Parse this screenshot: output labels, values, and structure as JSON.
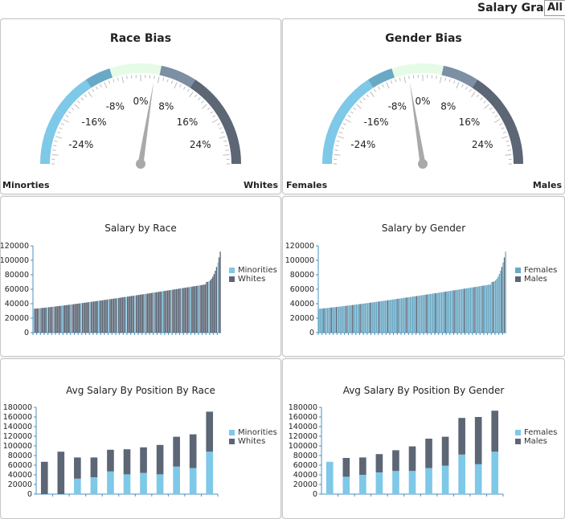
{
  "header": {
    "salary_grade_label": "Salary Grade:",
    "salary_grade_value": "All S"
  },
  "colors": {
    "light_blue": "#7ec8e8",
    "slate": "#5c6675",
    "teal": "#6aa9c5",
    "needle": "#a9a9a9",
    "mint": "#e6fbe6"
  },
  "gauges": [
    {
      "title": "Race Bias",
      "left_label": "Minorties",
      "right_label": "Whites",
      "ticks": [
        "-24%",
        "-16%",
        "-8%",
        "0%",
        "8%",
        "16%",
        "24%"
      ],
      "needle_value": 3
    },
    {
      "title": "Gender Bias",
      "left_label": "Females",
      "right_label": "Males",
      "ticks": [
        "-24%",
        "-16%",
        "-8%",
        "0%",
        "8%",
        "16%",
        "24%"
      ],
      "needle_value": -3
    }
  ],
  "chart_data": [
    {
      "type": "bar",
      "title": "Salary by Race",
      "series": [
        {
          "name": "Minorities"
        },
        {
          "name": "Whites"
        }
      ],
      "ylim": [
        0,
        120000
      ],
      "yticks": [
        "0",
        "20000",
        "40000",
        "60000",
        "80000",
        "100000",
        "120000"
      ],
      "n_bars": 150,
      "min_value": 33000,
      "max_value": 112000,
      "minority_positions": [
        0,
        5,
        11,
        16,
        23,
        30,
        38,
        45,
        52,
        60,
        67,
        74,
        81,
        89,
        96,
        103,
        110,
        118,
        125,
        132,
        140,
        147
      ]
    },
    {
      "type": "bar",
      "title": "Salary by Gender",
      "series": [
        {
          "name": "Females"
        },
        {
          "name": "Males"
        }
      ],
      "ylim": [
        0,
        120000
      ],
      "yticks": [
        "0",
        "20000",
        "40000",
        "60000",
        "80000",
        "100000",
        "120000"
      ],
      "n_bars": 150,
      "min_value": 33000,
      "max_value": 112000,
      "male_positions": [
        4,
        10,
        14,
        22,
        27,
        33,
        41,
        48,
        55,
        63,
        70,
        78,
        86,
        93,
        101,
        108,
        116,
        124,
        131,
        139,
        146,
        148
      ]
    },
    {
      "type": "bar",
      "title": "Avg Salary By Position By Race",
      "series": [
        {
          "name": "Minorities",
          "values": [
            0,
            0,
            32000,
            35000,
            47000,
            41000,
            44000,
            41000,
            57000,
            54000,
            88000
          ]
        },
        {
          "name": "Whites",
          "values": [
            67000,
            88000,
            44000,
            41000,
            45000,
            52000,
            53000,
            61000,
            62000,
            70000,
            83000
          ]
        }
      ],
      "ylim": [
        0,
        180000
      ],
      "yticks": [
        "0",
        "20000",
        "40000",
        "60000",
        "80000",
        "100000",
        "120000",
        "140000",
        "160000",
        "180000"
      ]
    },
    {
      "type": "bar",
      "title": "Avg Salary By Position By Gender",
      "series": [
        {
          "name": "Females",
          "values": [
            67000,
            36000,
            40000,
            45000,
            48000,
            48000,
            54000,
            59000,
            82000,
            62000,
            88000
          ]
        },
        {
          "name": "Males",
          "values": [
            0,
            39000,
            36000,
            38000,
            43000,
            51000,
            61000,
            60000,
            76000,
            98000,
            85000
          ]
        }
      ],
      "ylim": [
        0,
        180000
      ],
      "yticks": [
        "0",
        "20000",
        "40000",
        "60000",
        "80000",
        "100000",
        "120000",
        "140000",
        "160000",
        "180000"
      ]
    }
  ]
}
